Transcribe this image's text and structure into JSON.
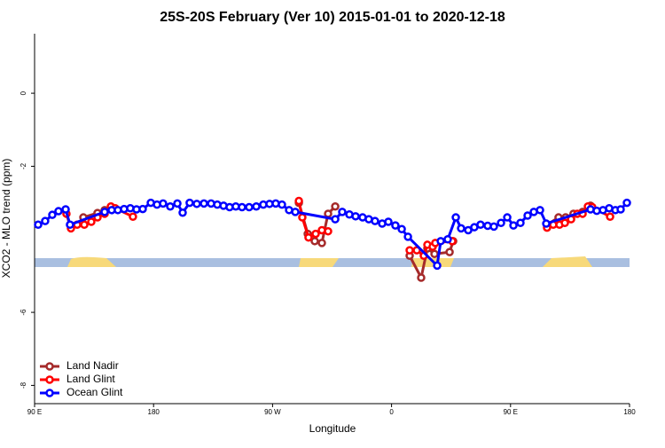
{
  "chart_data": {
    "type": "line",
    "title": "25S-20S February (Ver 10)   2015-01-01 to 2020-12-18",
    "x_label": "Longitude",
    "y_label": "XCO2 - MLO trend (ppm)",
    "xlim": [
      90,
      540
    ],
    "ylim": [
      -8.5,
      1.63
    ],
    "xticks": [
      {
        "value": 90,
        "label": "90 E"
      },
      {
        "value": 180,
        "label": "180"
      },
      {
        "value": 270,
        "label": "90 W"
      },
      {
        "value": 360,
        "label": "0"
      },
      {
        "value": 450,
        "label": "90 E"
      },
      {
        "value": 540,
        "label": "180"
      }
    ],
    "yticks": [
      0,
      -2,
      -6,
      -8
    ],
    "legend_position": "bottom-left",
    "series": [
      {
        "name": "Land Nadir",
        "color": "#a52a2a",
        "x": [
          126.9,
          137.6,
          143.0,
          null,
          289.9,
          296.6,
          301.9,
          307.3,
          312.0,
          317.4,
          null,
          373.7,
          382.4,
          387.1,
          392.5,
          403.9,
          406.6,
          null,
          477.6,
          486.3,
          491.7,
          497.6,
          504.5,
          510.5
        ],
        "values": [
          -3.4,
          -3.28,
          -3.2,
          null,
          -3.0,
          -3.85,
          -4.05,
          -4.1,
          -3.3,
          -3.1,
          null,
          -4.45,
          -5.05,
          -4.25,
          -4.4,
          -4.35,
          -4.05,
          null,
          -3.6,
          -3.4,
          -3.4,
          -3.3,
          -3.25,
          -3.08
        ]
      },
      {
        "name": "Land Glint",
        "color": "#ff0000",
        "x": [
          114.1,
          117.5,
          122.2,
          127.6,
          132.9,
          137.6,
          143.0,
          147.7,
          151.0,
          164.4,
          null,
          289.9,
          292.5,
          297.2,
          302.6,
          307.3,
          312.0,
          null,
          373.7,
          379.1,
          384.4,
          387.1,
          391.1,
          393.1,
          405.9,
          null,
          477.6,
          482.3,
          487.0,
          491.1,
          495.8,
          500.5,
          504.5,
          508.5,
          511.8,
          525.3
        ],
        "values": [
          -3.3,
          -3.7,
          -3.6,
          -3.6,
          -3.52,
          -3.4,
          -3.3,
          -3.1,
          -3.15,
          -3.38,
          null,
          -2.95,
          -3.4,
          -3.95,
          -3.85,
          -3.75,
          -3.78,
          null,
          -4.3,
          -4.3,
          -4.45,
          -4.15,
          -4.2,
          -4.1,
          -4.05,
          null,
          -3.68,
          -3.6,
          -3.6,
          -3.55,
          -3.45,
          -3.3,
          -3.3,
          -3.1,
          -3.12,
          -3.38
        ]
      },
      {
        "name": "Ocean Glint",
        "color": "#0000ff",
        "x": [
          92.7,
          98.0,
          103.4,
          108.1,
          113.5,
          116.8,
          143.0,
          148.3,
          153.0,
          157.7,
          162.4,
          167.1,
          171.8,
          177.9,
          182.6,
          187.2,
          192.6,
          198.0,
          202.0,
          207.3,
          212.7,
          218.1,
          223.5,
          228.2,
          232.9,
          237.5,
          242.2,
          246.9,
          252.3,
          257.7,
          263.0,
          267.7,
          272.4,
          277.1,
          282.5,
          287.2,
          317.4,
          322.7,
          328.1,
          332.8,
          338.1,
          342.8,
          347.5,
          352.9,
          357.6,
          362.9,
          367.7,
          372.4,
          394.5,
          397.2,
          402.5,
          408.6,
          412.6,
          418.0,
          422.6,
          427.3,
          432.7,
          437.4,
          442.8,
          447.5,
          452.2,
          457.5,
          462.9,
          467.6,
          472.3,
          477.0,
          510.5,
          515.2,
          519.9,
          524.6,
          529.3,
          533.3,
          538.0
        ],
        "values": [
          -3.6,
          -3.5,
          -3.33,
          -3.23,
          -3.18,
          -3.6,
          -3.25,
          -3.2,
          -3.2,
          -3.17,
          -3.15,
          -3.18,
          -3.17,
          -3.0,
          -3.05,
          -3.02,
          -3.1,
          -3.02,
          -3.27,
          -3.0,
          -3.03,
          -3.02,
          -3.02,
          -3.05,
          -3.08,
          -3.12,
          -3.1,
          -3.12,
          -3.12,
          -3.1,
          -3.05,
          -3.03,
          -3.02,
          -3.05,
          -3.2,
          -3.25,
          -3.45,
          -3.25,
          -3.32,
          -3.37,
          -3.4,
          -3.45,
          -3.5,
          -3.57,
          -3.52,
          -3.62,
          -3.72,
          -3.93,
          -4.72,
          -4.05,
          -4.0,
          -3.4,
          -3.7,
          -3.75,
          -3.67,
          -3.6,
          -3.63,
          -3.65,
          -3.55,
          -3.4,
          -3.62,
          -3.55,
          -3.35,
          -3.25,
          -3.2,
          -3.57,
          -3.18,
          -3.22,
          -3.2,
          -3.15,
          -3.2,
          -3.18,
          -3.0
        ]
      }
    ]
  }
}
